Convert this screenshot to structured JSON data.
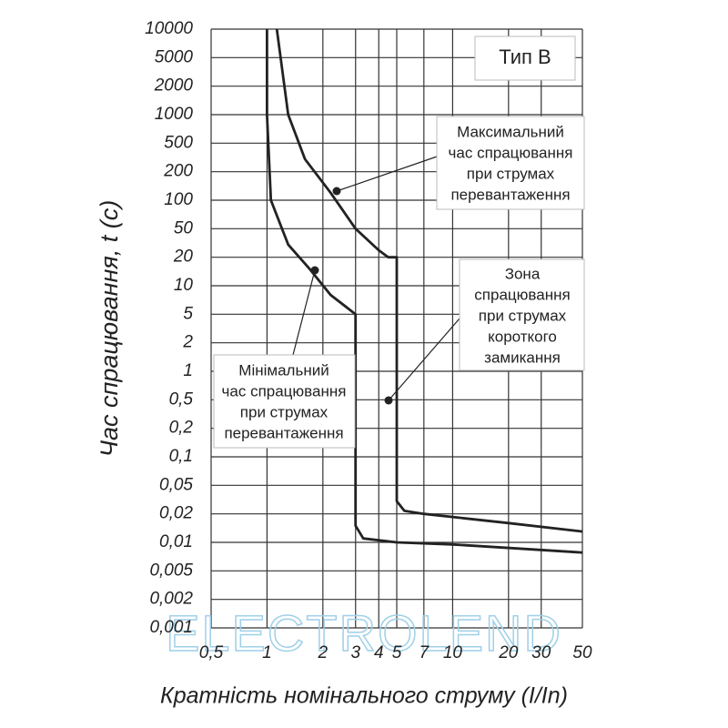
{
  "chart_data": {
    "type": "line",
    "x_label": "Кратність номінального струму (I/In)",
    "y_label": "Час спрацювання, t (c)",
    "log_x": true,
    "xlim": [
      0.5,
      50
    ],
    "xticks": [
      {
        "value": 0.5,
        "label": "0,5"
      },
      1,
      2,
      3,
      4,
      5,
      7,
      10,
      20,
      30,
      50
    ],
    "ylim": [
      0.001,
      10000
    ],
    "yticks": [
      10000,
      5000,
      2000,
      1000,
      500,
      200,
      100,
      50,
      20,
      10,
      5,
      2,
      1,
      {
        "value": 0.5,
        "label": "0,5"
      },
      {
        "value": 0.2,
        "label": "0,2"
      },
      {
        "value": 0.1,
        "label": "0,1"
      },
      {
        "value": 0.05,
        "label": "0,05"
      },
      {
        "value": 0.02,
        "label": "0,02"
      },
      {
        "value": 0.01,
        "label": "0,01"
      },
      {
        "value": 0.005,
        "label": "0,005"
      },
      {
        "value": 0.002,
        "label": "0,002"
      },
      {
        "value": 0.001,
        "label": "0,001"
      }
    ],
    "grid": true,
    "series": [
      {
        "color": "#222222",
        "x": [
          1.13,
          1.3,
          1.6,
          2.2,
          3,
          4,
          4.5,
          5,
          5,
          5.5,
          7,
          20,
          50
        ],
        "values": [
          10000,
          1000,
          300,
          120,
          50,
          25,
          20,
          20,
          0.03,
          0.022,
          0.02,
          0.016,
          0.013
        ]
      },
      {
        "color": "#222222",
        "x": [
          1,
          1,
          1.05,
          1.3,
          1.7,
          2.2,
          3,
          3,
          3.3,
          5,
          10,
          50
        ],
        "values": [
          10000,
          1000,
          100,
          30,
          15,
          8,
          5,
          0.015,
          0.011,
          0.01,
          0.0095,
          0.0078
        ]
      }
    ],
    "annotations": [
      {
        "lines": [
          "Тип В"
        ]
      },
      {
        "lines": [
          "Максимальний",
          "час спрацювання",
          "при струмах",
          "перевантаження"
        ]
      },
      {
        "lines": [
          "Зона",
          "спрацювання",
          "при струмах",
          "короткого",
          "замикання"
        ]
      },
      {
        "lines": [
          "Мінімальний",
          "час спрацювання",
          "при струмах",
          "перевантаження"
        ]
      }
    ],
    "watermark": "ELECTROLEND"
  }
}
